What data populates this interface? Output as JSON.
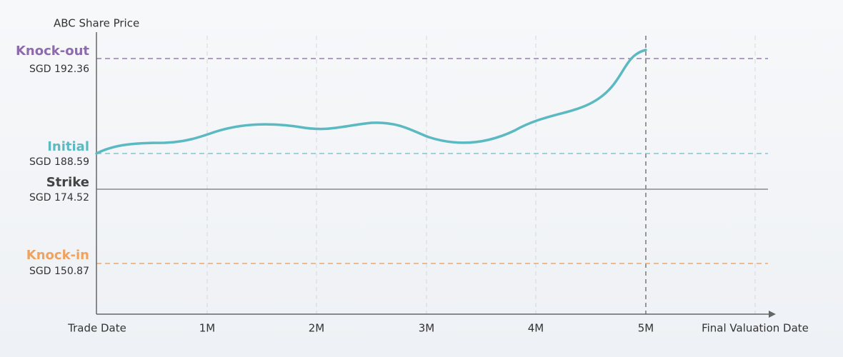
{
  "title": "ABC Share Price",
  "levels": [
    {
      "name": "Knock-out",
      "price": "SGD 192.36"
    },
    {
      "name": "Initial",
      "price": "SGD 188.59"
    },
    {
      "name": "Strike",
      "price": "SGD 174.52"
    },
    {
      "name": "Knock-in",
      "price": "SGD 150.87"
    }
  ],
  "x_labels": [
    "Trade Date",
    "1M",
    "2M",
    "3M",
    "4M",
    "5M",
    "Final Valuation Date"
  ]
}
